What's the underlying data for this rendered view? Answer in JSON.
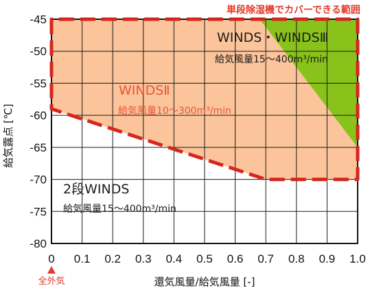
{
  "chart_data": {
    "type": "area",
    "top_label": "単段除湿機でカバーできる範囲",
    "xlabel": "還気風量/給気風量 [-]",
    "ylabel": "給気露点 [℃]",
    "x_marker_label": "全外気",
    "xlim": [
      0,
      1.0
    ],
    "ylim": [
      -80,
      -45
    ],
    "x_ticks": [
      "0",
      "0.1",
      "0.2",
      "0.3",
      "0.4",
      "0.5",
      "0.6",
      "0.7",
      "0.8",
      "0.9",
      "1.0"
    ],
    "y_ticks": [
      "-45",
      "-50",
      "-55",
      "-60",
      "-65",
      "-70",
      "-75",
      "-80"
    ],
    "grid": true,
    "regions": [
      {
        "name": "WINDSⅡ",
        "airflow": "給気風量10～300m³/min",
        "color": "#fbc49a",
        "boundary_x": [
          0,
          0,
          0.7,
          1.0,
          1.0
        ],
        "boundary_y": [
          -45,
          -59,
          -70,
          -70,
          -45
        ]
      },
      {
        "name": "WINDS・WINDSⅢ",
        "airflow": "給気風量15～400m³/min",
        "color": "#88c21b",
        "boundary_x": [
          0.68,
          1.0,
          1.0
        ],
        "boundary_y": [
          -45,
          -45,
          -65
        ]
      },
      {
        "name": "2段WINDS",
        "airflow": "給気風量15～400m³/min",
        "color": "#ffffff"
      }
    ],
    "dashed_boundary": {
      "color": "#d7261e",
      "x": [
        0,
        0,
        0.7,
        1.0,
        1.0
      ],
      "y": [
        -45,
        -59,
        -70,
        -70,
        -45
      ]
    }
  }
}
